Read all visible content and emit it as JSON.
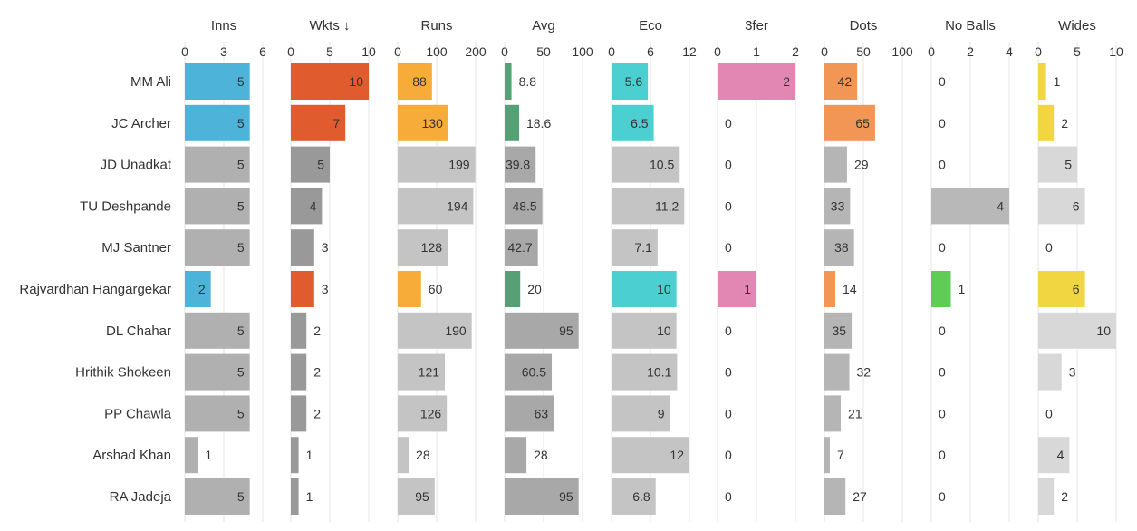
{
  "chart_data": {
    "type": "bar",
    "orientation": "horizontal",
    "players": [
      "MM Ali",
      "JC Archer",
      "JD Unadkat",
      "TU Deshpande",
      "MJ Santner",
      "Rajvardhan Hangargekar",
      "DL Chahar",
      "Hrithik Shokeen",
      "PP Chawla",
      "Arshad Khan",
      "RA Jadeja"
    ],
    "highlighted": [
      true,
      true,
      false,
      false,
      false,
      true,
      false,
      false,
      false,
      false,
      false
    ],
    "columns": [
      {
        "title": "Inns",
        "ticks": [
          "0",
          "3",
          "6"
        ],
        "max": 6,
        "color": "#4db3d9",
        "muted": "#b0b0b0",
        "values": [
          5,
          5,
          5,
          5,
          5,
          2,
          5,
          5,
          5,
          1,
          5
        ],
        "labels": [
          "5",
          "5",
          "5",
          "5",
          "5",
          "2",
          "5",
          "5",
          "5",
          "1",
          "5"
        ]
      },
      {
        "title": "Wkts ↓",
        "ticks": [
          "0",
          "5",
          "10"
        ],
        "max": 10,
        "color": "#e05c2e",
        "muted": "#999999",
        "values": [
          10,
          7,
          5,
          4,
          3,
          3,
          2,
          2,
          2,
          1,
          1
        ],
        "labels": [
          "10",
          "7",
          "5",
          "4",
          "3",
          "3",
          "2",
          "2",
          "2",
          "1",
          "1"
        ]
      },
      {
        "title": "Runs",
        "ticks": [
          "0",
          "100",
          "200"
        ],
        "max": 200,
        "color": "#f7ac3a",
        "muted": "#c4c4c4",
        "values": [
          88,
          130,
          199,
          194,
          128,
          60,
          190,
          121,
          126,
          28,
          95
        ],
        "labels": [
          "88",
          "130",
          "199",
          "194",
          "128",
          "60",
          "190",
          "121",
          "126",
          "28",
          "95"
        ]
      },
      {
        "title": "Avg",
        "ticks": [
          "0",
          "50",
          "100"
        ],
        "max": 100,
        "color": "#55a074",
        "muted": "#a8a8a8",
        "values": [
          8.8,
          18.6,
          39.8,
          48.5,
          42.7,
          20,
          95,
          60.5,
          63,
          28,
          95
        ],
        "labels": [
          "8.8",
          "18.6",
          "39.8",
          "48.5",
          "42.7",
          "20",
          "95",
          "60.5",
          "63",
          "28",
          "95"
        ]
      },
      {
        "title": "Eco",
        "ticks": [
          "0",
          "6",
          "12"
        ],
        "max": 12,
        "color": "#4ccfd0",
        "muted": "#c4c4c4",
        "values": [
          5.6,
          6.5,
          10.5,
          11.2,
          7.1,
          10,
          10,
          10.1,
          9,
          12,
          6.8
        ],
        "labels": [
          "5.6",
          "6.5",
          "10.5",
          "11.2",
          "7.1",
          "10",
          "10",
          "10.1",
          "9",
          "12",
          "6.8"
        ]
      },
      {
        "title": "3fer",
        "ticks": [
          "0",
          "1",
          "2"
        ],
        "max": 2,
        "color": "#e287b3",
        "muted": "#b0b0b0",
        "values": [
          2,
          0,
          0,
          0,
          0,
          1,
          0,
          0,
          0,
          0,
          0
        ],
        "labels": [
          "2",
          "0",
          "0",
          "0",
          "0",
          "1",
          "0",
          "0",
          "0",
          "0",
          "0"
        ]
      },
      {
        "title": "Dots",
        "ticks": [
          "0",
          "50",
          "100"
        ],
        "max": 100,
        "color": "#f29656",
        "muted": "#b5b5b5",
        "values": [
          42,
          65,
          29,
          33,
          38,
          14,
          35,
          32,
          21,
          7,
          27
        ],
        "labels": [
          "42",
          "65",
          "29",
          "33",
          "38",
          "14",
          "35",
          "32",
          "21",
          "7",
          "27"
        ]
      },
      {
        "title": "No Balls",
        "ticks": [
          "0",
          "2",
          "4"
        ],
        "max": 4,
        "color": "#5fcc55",
        "muted": "#b8b8b8",
        "values": [
          0,
          0,
          0,
          4,
          0,
          1,
          0,
          0,
          0,
          0,
          0
        ],
        "labels": [
          "0",
          "0",
          "0",
          "4",
          "0",
          "1",
          "0",
          "0",
          "0",
          "0",
          "0"
        ]
      },
      {
        "title": "Wides",
        "ticks": [
          "0",
          "5",
          "10"
        ],
        "max": 10,
        "color": "#f2d641",
        "muted": "#d8d8d8",
        "values": [
          1,
          2,
          5,
          6,
          0,
          6,
          10,
          3,
          0,
          4,
          2
        ],
        "labels": [
          "1",
          "2",
          "5",
          "6",
          "0",
          "6",
          "10",
          "3",
          "0",
          "4",
          "2"
        ]
      }
    ]
  }
}
